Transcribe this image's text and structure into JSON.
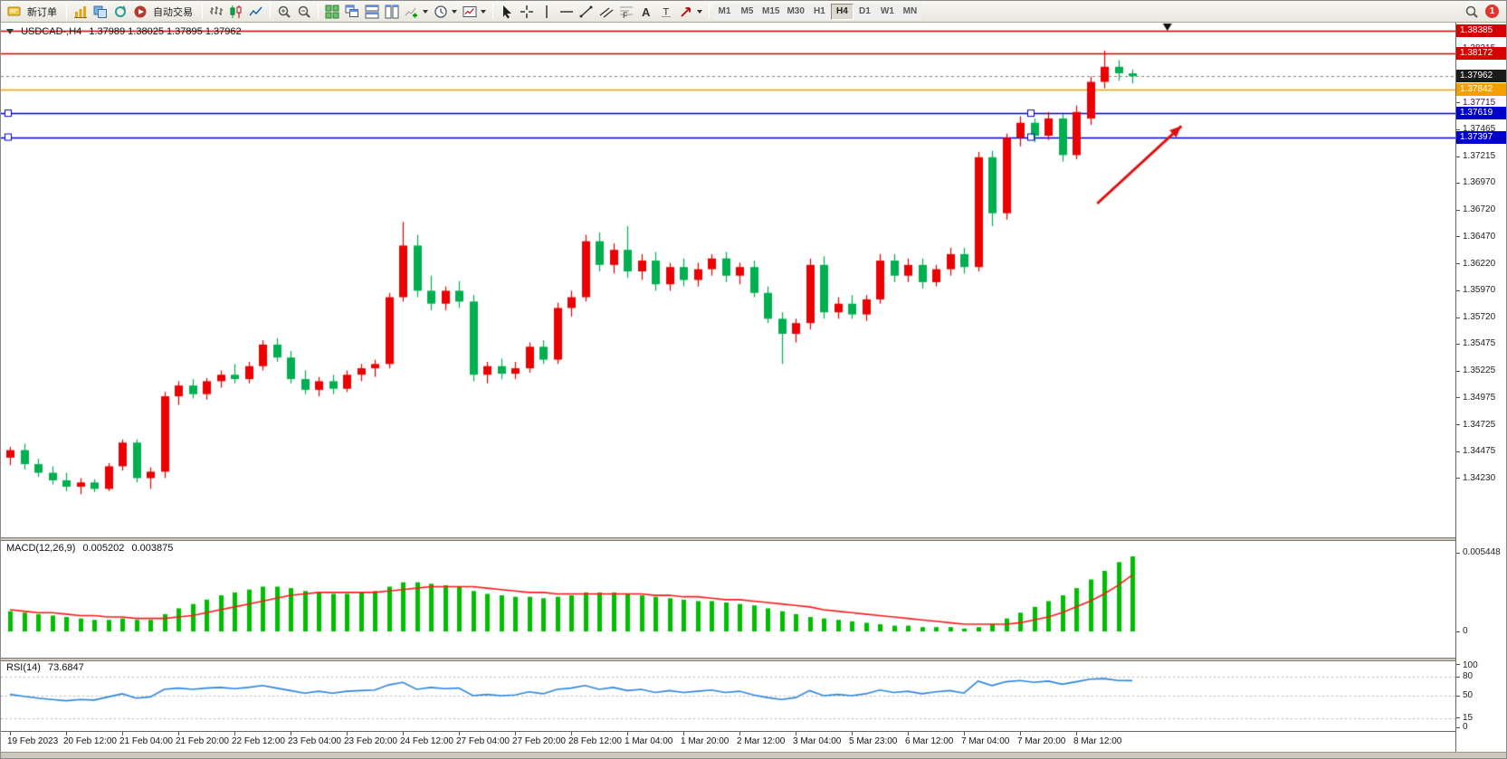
{
  "colors": {
    "bull": "#ec0000",
    "bear": "#00b050",
    "line_red": "#d60000",
    "line_orange": "#f5a000",
    "line_blue": "#0000cc",
    "bid_line": "#808080",
    "badge_red": "#d60000",
    "badge_orange": "#f5a000",
    "badge_blue": "#0000cc",
    "badge_black": "#1b1b1b",
    "macd_hist": "#00bf00",
    "macd_signal": "#ff1a1a",
    "rsi_line": "#2e86de",
    "arrow": "#e01010"
  },
  "toolbar": {
    "new_order_label": "新订单",
    "autotrading_label": "自动交易",
    "chart_icons": [
      "new-chart",
      "profiles",
      "refresh"
    ],
    "type_icons": [
      "bar-chart",
      "candlestick",
      "line-chart"
    ],
    "zoom_icons": [
      "zoom-in",
      "zoom-out"
    ],
    "window_icons": [
      "tile-windows",
      "cascade-windows",
      "tile-horizontal",
      "tile-vertical"
    ],
    "insert_icons": [
      "indicators-add",
      "periods",
      "templates"
    ],
    "tool_icons": [
      "cursor",
      "crosshair",
      "vertical-line",
      "horizontal-line",
      "trendline",
      "channel",
      "fibonacci",
      "text",
      "label",
      "arrows"
    ],
    "timeframes": [
      "M1",
      "M5",
      "M15",
      "M30",
      "H1",
      "H4",
      "D1",
      "W1",
      "MN"
    ],
    "active_timeframe": "H4",
    "notification_badge": "1"
  },
  "chart": {
    "symbol_period": "USDCAD-,H4",
    "ohlc": "1.37989 1.38025 1.37895 1.37962"
  },
  "chart_data": {
    "type": "candlestick",
    "symbol": "USDCAD-",
    "timeframe": "H4",
    "visible_range": {
      "top": 1.3846,
      "bottom": 1.3368
    },
    "candles": [
      [
        1.3442,
        1.3452,
        1.3435,
        1.3449
      ],
      [
        1.3449,
        1.3455,
        1.3431,
        1.3436
      ],
      [
        1.3436,
        1.3441,
        1.3424,
        1.3428
      ],
      [
        1.3428,
        1.3434,
        1.3417,
        1.3421
      ],
      [
        1.3421,
        1.3428,
        1.3411,
        1.3415
      ],
      [
        1.3415,
        1.3423,
        1.3408,
        1.3419
      ],
      [
        1.3419,
        1.3422,
        1.341,
        1.3413
      ],
      [
        1.3413,
        1.3437,
        1.3411,
        1.3434
      ],
      [
        1.3434,
        1.3459,
        1.343,
        1.3456
      ],
      [
        1.3456,
        1.3459,
        1.3419,
        1.3423
      ],
      [
        1.3423,
        1.3433,
        1.3413,
        1.3429
      ],
      [
        1.3429,
        1.3503,
        1.3423,
        1.3499
      ],
      [
        1.3499,
        1.3513,
        1.3491,
        1.3509
      ],
      [
        1.3509,
        1.3515,
        1.3497,
        1.3501
      ],
      [
        1.3501,
        1.3516,
        1.3496,
        1.3513
      ],
      [
        1.3513,
        1.3523,
        1.3507,
        1.3519
      ],
      [
        1.3519,
        1.3529,
        1.3511,
        1.3515
      ],
      [
        1.3515,
        1.3531,
        1.3511,
        1.3527
      ],
      [
        1.3527,
        1.3551,
        1.3523,
        1.3547
      ],
      [
        1.3547,
        1.3553,
        1.3531,
        1.3535
      ],
      [
        1.3535,
        1.3541,
        1.3511,
        1.3515
      ],
      [
        1.3515,
        1.3523,
        1.3501,
        1.3505
      ],
      [
        1.3505,
        1.3517,
        1.3499,
        1.3513
      ],
      [
        1.3513,
        1.3519,
        1.3501,
        1.3506
      ],
      [
        1.3506,
        1.3523,
        1.3503,
        1.3519
      ],
      [
        1.3519,
        1.3529,
        1.3513,
        1.3525
      ],
      [
        1.3525,
        1.3533,
        1.3517,
        1.3529
      ],
      [
        1.3529,
        1.3595,
        1.3525,
        1.3591
      ],
      [
        1.3591,
        1.3661,
        1.3587,
        1.3639
      ],
      [
        1.3639,
        1.3649,
        1.3591,
        1.3597
      ],
      [
        1.3597,
        1.3611,
        1.3579,
        1.3585
      ],
      [
        1.3585,
        1.3601,
        1.3579,
        1.3597
      ],
      [
        1.3597,
        1.3606,
        1.3581,
        1.3587
      ],
      [
        1.3587,
        1.3593,
        1.3513,
        1.3519
      ],
      [
        1.3519,
        1.3531,
        1.3511,
        1.3527
      ],
      [
        1.3527,
        1.3534,
        1.3515,
        1.352
      ],
      [
        1.352,
        1.3531,
        1.3515,
        1.3525
      ],
      [
        1.3525,
        1.3549,
        1.3521,
        1.3545
      ],
      [
        1.3545,
        1.3551,
        1.3529,
        1.3533
      ],
      [
        1.3533,
        1.3586,
        1.3529,
        1.3581
      ],
      [
        1.3581,
        1.3597,
        1.3573,
        1.3591
      ],
      [
        1.3591,
        1.3649,
        1.3587,
        1.3643
      ],
      [
        1.3643,
        1.3651,
        1.3615,
        1.3621
      ],
      [
        1.3621,
        1.3641,
        1.3613,
        1.3635
      ],
      [
        1.3635,
        1.3657,
        1.3609,
        1.3615
      ],
      [
        1.3615,
        1.3631,
        1.3607,
        1.3625
      ],
      [
        1.3625,
        1.3633,
        1.3597,
        1.3603
      ],
      [
        1.3603,
        1.3623,
        1.3597,
        1.3619
      ],
      [
        1.3619,
        1.3627,
        1.3601,
        1.3607
      ],
      [
        1.3607,
        1.3623,
        1.3601,
        1.3617
      ],
      [
        1.3617,
        1.3631,
        1.3611,
        1.3627
      ],
      [
        1.3627,
        1.3633,
        1.3605,
        1.3611
      ],
      [
        1.3611,
        1.3623,
        1.3603,
        1.3619
      ],
      [
        1.3619,
        1.3625,
        1.3591,
        1.3595
      ],
      [
        1.3595,
        1.3601,
        1.3567,
        1.3571
      ],
      [
        1.3571,
        1.3577,
        1.3529,
        1.3557
      ],
      [
        1.3557,
        1.3571,
        1.3549,
        1.3567
      ],
      [
        1.3567,
        1.3627,
        1.3561,
        1.3621
      ],
      [
        1.3621,
        1.3629,
        1.3571,
        1.3577
      ],
      [
        1.3577,
        1.3591,
        1.3571,
        1.3585
      ],
      [
        1.3585,
        1.3593,
        1.3571,
        1.3575
      ],
      [
        1.3575,
        1.3593,
        1.3569,
        1.3589
      ],
      [
        1.3589,
        1.3631,
        1.3585,
        1.3625
      ],
      [
        1.3625,
        1.3631,
        1.3605,
        1.3611
      ],
      [
        1.3611,
        1.3627,
        1.3605,
        1.3621
      ],
      [
        1.3621,
        1.3627,
        1.3599,
        1.3605
      ],
      [
        1.3605,
        1.3621,
        1.3601,
        1.3617
      ],
      [
        1.3617,
        1.3637,
        1.3611,
        1.3631
      ],
      [
        1.3631,
        1.3637,
        1.3613,
        1.3619
      ],
      [
        1.3619,
        1.3726,
        1.3615,
        1.3721
      ],
      [
        1.3721,
        1.3727,
        1.3657,
        1.3669
      ],
      [
        1.3669,
        1.3743,
        1.3663,
        1.3739
      ],
      [
        1.3739,
        1.3759,
        1.3731,
        1.3753
      ],
      [
        1.3753,
        1.3757,
        1.3735,
        1.3741
      ],
      [
        1.3741,
        1.3763,
        1.3737,
        1.3757
      ],
      [
        1.3757,
        1.3761,
        1.3717,
        1.3723
      ],
      [
        1.3723,
        1.3769,
        1.3719,
        1.3763
      ],
      [
        1.3757,
        1.3796,
        1.3751,
        1.3791
      ],
      [
        1.3791,
        1.382,
        1.3785,
        1.3805
      ],
      [
        1.3805,
        1.3811,
        1.3792,
        1.3799
      ],
      [
        1.37989,
        1.38025,
        1.37895,
        1.37962
      ]
    ],
    "time_labels": [
      "19 Feb 2023",
      "20 Feb 12:00",
      "21 Feb 04:00",
      "21 Feb 20:00",
      "22 Feb 12:00",
      "23 Feb 04:00",
      "23 Feb 20:00",
      "24 Feb 12:00",
      "27 Feb 04:00",
      "27 Feb 20:00",
      "28 Feb 12:00",
      "1 Mar 04:00",
      "1 Mar 20:00",
      "2 Mar 12:00",
      "3 Mar 04:00",
      "5 Mar 23:00",
      "6 Mar 12:00",
      "7 Mar 04:00",
      "7 Mar 20:00",
      "8 Mar 12:00"
    ],
    "label_every_n_candles": 4,
    "price_ticks": [
      "1.38215",
      "1.37965",
      "1.37715",
      "1.37465",
      "1.37215",
      "1.36970",
      "1.36720",
      "1.36470",
      "1.36220",
      "1.35970",
      "1.35720",
      "1.35475",
      "1.35225",
      "1.34975",
      "1.34725",
      "1.34475",
      "1.34230"
    ],
    "hlines": [
      {
        "price": 1.38385,
        "label": "1.38385",
        "color": "line_red",
        "badge_bg": "badge_red"
      },
      {
        "price": 1.38172,
        "label": "1.38172",
        "color": "line_red",
        "badge_bg": "badge_red"
      },
      {
        "price": 1.37842,
        "label": "1.37842",
        "color": "line_orange",
        "badge_bg": "badge_orange"
      },
      {
        "price": 1.37619,
        "label": "1.37619",
        "color": "line_blue",
        "badge_bg": "badge_blue"
      },
      {
        "price": 1.37397,
        "label": "1.37397",
        "color": "line_blue",
        "badge_bg": "badge_blue"
      }
    ],
    "bid": {
      "price": 1.37962,
      "label": "1.37962"
    },
    "top_marker_candle": 82.5,
    "arrow": {
      "from_candle": 77.5,
      "from_price": 1.3678,
      "to_candle": 83.5,
      "to_price": 1.375
    },
    "macd": {
      "label": "MACD(12,26,9)",
      "value_main": "0.005202",
      "value_signal": "0.003875",
      "axis_max_label": "0.005448",
      "axis_zero_label": "0",
      "value_scale": 0.0001,
      "histogram": [
        14,
        13,
        12,
        11,
        10,
        9,
        8,
        8,
        9,
        8,
        8,
        12,
        16,
        19,
        22,
        25,
        27,
        29,
        31,
        31,
        30,
        28,
        27,
        26,
        26,
        27,
        28,
        31,
        34,
        34,
        33,
        32,
        31,
        28,
        26,
        25,
        24,
        24,
        23,
        24,
        25,
        27,
        27,
        27,
        26,
        25,
        24,
        23,
        22,
        21,
        21,
        20,
        19,
        18,
        16,
        14,
        12,
        10,
        9,
        8,
        7,
        6,
        5,
        4,
        4,
        3,
        3,
        3,
        2,
        3,
        5,
        9,
        13,
        17,
        21,
        25,
        30,
        36,
        42,
        48,
        52
      ],
      "signal": [
        15,
        14,
        13,
        13,
        12,
        11,
        11,
        10,
        10,
        9,
        9,
        9,
        10,
        11,
        13,
        15,
        17,
        19,
        21,
        23,
        25,
        26,
        27,
        27,
        27,
        27,
        27,
        28,
        29,
        30,
        31,
        31,
        31,
        31,
        30,
        29,
        28,
        27,
        27,
        26,
        26,
        26,
        26,
        26,
        26,
        26,
        25,
        25,
        24,
        24,
        23,
        22,
        22,
        21,
        20,
        19,
        18,
        17,
        15,
        14,
        13,
        12,
        11,
        10,
        9,
        8,
        7,
        6,
        5,
        5,
        5,
        5,
        6,
        8,
        10,
        13,
        17,
        21,
        26,
        32,
        39
      ]
    },
    "rsi": {
      "label": "RSI(14)",
      "value": "73.6847",
      "axis_labels": [
        "100",
        "80",
        "50",
        "15",
        "0"
      ],
      "levels": [
        80,
        50,
        15
      ],
      "series": [
        52,
        49,
        46,
        44,
        42,
        44,
        43,
        48,
        53,
        46,
        48,
        60,
        62,
        60,
        62,
        63,
        61,
        63,
        66,
        62,
        58,
        54,
        57,
        54,
        57,
        58,
        59,
        67,
        71,
        60,
        63,
        61,
        62,
        50,
        52,
        50,
        51,
        56,
        53,
        60,
        62,
        66,
        60,
        63,
        58,
        60,
        55,
        58,
        55,
        57,
        59,
        55,
        57,
        51,
        47,
        44,
        47,
        58,
        50,
        52,
        50,
        53,
        59,
        55,
        57,
        53,
        56,
        58,
        54,
        73,
        66,
        72,
        74,
        71,
        73,
        68,
        72,
        76,
        77,
        74,
        73.7
      ]
    }
  }
}
